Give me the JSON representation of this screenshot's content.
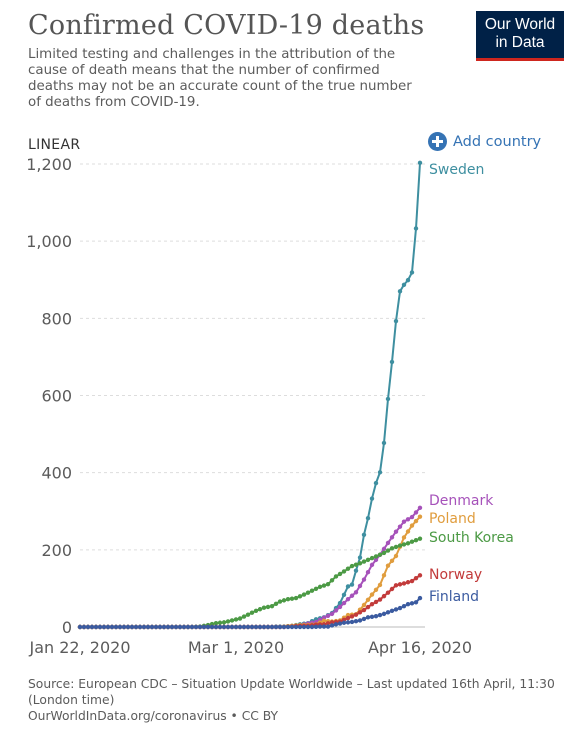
{
  "header": {
    "title": "Confirmed COVID-19 deaths",
    "subtitle": "Limited testing and challenges in the attribution of the cause of death means that the number of confirmed deaths may not be an accurate count of the true number of deaths from COVID-19.",
    "logo_line1": "Our World",
    "logo_line2": "in Data"
  },
  "controls": {
    "scale_label": "LINEAR",
    "add_country_label": "Add country",
    "add_country_icon": "plus-circle-icon"
  },
  "footer": {
    "source_line": "Source: European CDC – Situation Update Worldwide – Last updated 16th April, 11:30 (London time)",
    "url_line": "OurWorldInData.org/coronavirus • CC BY"
  },
  "colors": {
    "logo_bg": "#002147",
    "logo_accent": "#ce261e",
    "link": "#3573b4",
    "grid": "#dddddd"
  },
  "chart_data": {
    "type": "line",
    "title": "",
    "xlabel": "",
    "ylabel": "",
    "x_start": "2020-01-22",
    "x_end": "2020-04-16",
    "x_tick_labels": [
      "Jan 22, 2020",
      "Mar 1, 2020",
      "Apr 16, 2020"
    ],
    "x_tick_dates": [
      "2020-01-22",
      "2020-03-01",
      "2020-04-16"
    ],
    "ylim": [
      0,
      1200
    ],
    "y_ticks": [
      0,
      200,
      400,
      600,
      800,
      1000,
      1200
    ],
    "y_tick_labels": [
      "0",
      "200",
      "400",
      "600",
      "800",
      "1,000",
      "1,200"
    ],
    "grid": "horizontal dashed",
    "legend": "end-of-line labels",
    "series": [
      {
        "name": "Sweden",
        "color": "#3e8fa0",
        "points": [
          [
            "2020-01-22",
            0
          ],
          [
            "2020-03-10",
            0
          ],
          [
            "2020-03-11",
            1
          ],
          [
            "2020-03-13",
            1
          ],
          [
            "2020-03-15",
            3
          ],
          [
            "2020-03-17",
            7
          ],
          [
            "2020-03-19",
            10
          ],
          [
            "2020-03-21",
            20
          ],
          [
            "2020-03-23",
            25
          ],
          [
            "2020-03-25",
            36
          ],
          [
            "2020-03-27",
            62
          ],
          [
            "2020-03-29",
            105
          ],
          [
            "2020-03-30",
            110
          ],
          [
            "2020-03-31",
            146
          ],
          [
            "2020-04-01",
            180
          ],
          [
            "2020-04-02",
            239
          ],
          [
            "2020-04-03",
            282
          ],
          [
            "2020-04-04",
            333
          ],
          [
            "2020-04-05",
            373
          ],
          [
            "2020-04-06",
            401
          ],
          [
            "2020-04-07",
            477
          ],
          [
            "2020-04-08",
            591
          ],
          [
            "2020-04-09",
            687
          ],
          [
            "2020-04-10",
            793
          ],
          [
            "2020-04-11",
            870
          ],
          [
            "2020-04-12",
            887
          ],
          [
            "2020-04-13",
            899
          ],
          [
            "2020-04-14",
            919
          ],
          [
            "2020-04-15",
            1033
          ],
          [
            "2020-04-16",
            1203
          ]
        ]
      },
      {
        "name": "Denmark",
        "color": "#a652ba",
        "points": [
          [
            "2020-01-22",
            0
          ],
          [
            "2020-03-13",
            0
          ],
          [
            "2020-03-14",
            1
          ],
          [
            "2020-03-17",
            4
          ],
          [
            "2020-03-19",
            9
          ],
          [
            "2020-03-21",
            13
          ],
          [
            "2020-03-23",
            24
          ],
          [
            "2020-03-25",
            34
          ],
          [
            "2020-03-27",
            52
          ],
          [
            "2020-03-29",
            72
          ],
          [
            "2020-03-31",
            90
          ],
          [
            "2020-04-02",
            123
          ],
          [
            "2020-04-04",
            161
          ],
          [
            "2020-04-06",
            187
          ],
          [
            "2020-04-08",
            218
          ],
          [
            "2020-04-10",
            247
          ],
          [
            "2020-04-12",
            273
          ],
          [
            "2020-04-14",
            285
          ],
          [
            "2020-04-16",
            309
          ]
        ]
      },
      {
        "name": "Poland",
        "color": "#e09d3e",
        "points": [
          [
            "2020-01-22",
            0
          ],
          [
            "2020-03-12",
            0
          ],
          [
            "2020-03-14",
            2
          ],
          [
            "2020-03-17",
            5
          ],
          [
            "2020-03-19",
            5
          ],
          [
            "2020-03-21",
            7
          ],
          [
            "2020-03-23",
            16
          ],
          [
            "2020-03-25",
            14
          ],
          [
            "2020-03-27",
            17
          ],
          [
            "2020-03-29",
            31
          ],
          [
            "2020-03-31",
            33
          ],
          [
            "2020-04-02",
            57
          ],
          [
            "2020-04-04",
            84
          ],
          [
            "2020-04-06",
            109
          ],
          [
            "2020-04-08",
            159
          ],
          [
            "2020-04-10",
            184
          ],
          [
            "2020-04-12",
            232
          ],
          [
            "2020-04-14",
            263
          ],
          [
            "2020-04-16",
            286
          ]
        ]
      },
      {
        "name": "South Korea",
        "color": "#4c9a45",
        "points": [
          [
            "2020-01-22",
            0
          ],
          [
            "2020-02-19",
            0
          ],
          [
            "2020-02-21",
            1
          ],
          [
            "2020-02-23",
            5
          ],
          [
            "2020-02-25",
            10
          ],
          [
            "2020-02-27",
            12
          ],
          [
            "2020-02-29",
            17
          ],
          [
            "2020-03-02",
            22
          ],
          [
            "2020-03-04",
            32
          ],
          [
            "2020-03-06",
            42
          ],
          [
            "2020-03-08",
            50
          ],
          [
            "2020-03-10",
            54
          ],
          [
            "2020-03-12",
            66
          ],
          [
            "2020-03-14",
            72
          ],
          [
            "2020-03-16",
            75
          ],
          [
            "2020-03-18",
            84
          ],
          [
            "2020-03-20",
            94
          ],
          [
            "2020-03-22",
            104
          ],
          [
            "2020-03-24",
            111
          ],
          [
            "2020-03-26",
            131
          ],
          [
            "2020-03-28",
            144
          ],
          [
            "2020-03-30",
            158
          ],
          [
            "2020-04-01",
            165
          ],
          [
            "2020-04-03",
            174
          ],
          [
            "2020-04-05",
            183
          ],
          [
            "2020-04-07",
            192
          ],
          [
            "2020-04-09",
            204
          ],
          [
            "2020-04-11",
            211
          ],
          [
            "2020-04-13",
            217
          ],
          [
            "2020-04-16",
            229
          ]
        ]
      },
      {
        "name": "Norway",
        "color": "#c23b3b",
        "points": [
          [
            "2020-01-22",
            0
          ],
          [
            "2020-03-13",
            0
          ],
          [
            "2020-03-15",
            1
          ],
          [
            "2020-03-17",
            3
          ],
          [
            "2020-03-19",
            3
          ],
          [
            "2020-03-21",
            6
          ],
          [
            "2020-03-23",
            7
          ],
          [
            "2020-03-25",
            12
          ],
          [
            "2020-03-27",
            14
          ],
          [
            "2020-03-29",
            23
          ],
          [
            "2020-03-31",
            32
          ],
          [
            "2020-04-02",
            44
          ],
          [
            "2020-04-04",
            59
          ],
          [
            "2020-04-06",
            71
          ],
          [
            "2020-04-08",
            89
          ],
          [
            "2020-04-10",
            108
          ],
          [
            "2020-04-12",
            113
          ],
          [
            "2020-04-14",
            119
          ],
          [
            "2020-04-16",
            134
          ]
        ]
      },
      {
        "name": "Finland",
        "color": "#3b5ba0",
        "points": [
          [
            "2020-01-22",
            0
          ],
          [
            "2020-03-20",
            0
          ],
          [
            "2020-03-22",
            1
          ],
          [
            "2020-03-24",
            1
          ],
          [
            "2020-03-26",
            7
          ],
          [
            "2020-03-28",
            11
          ],
          [
            "2020-03-30",
            13
          ],
          [
            "2020-04-01",
            17
          ],
          [
            "2020-04-03",
            25
          ],
          [
            "2020-04-05",
            28
          ],
          [
            "2020-04-07",
            34
          ],
          [
            "2020-04-09",
            42
          ],
          [
            "2020-04-11",
            49
          ],
          [
            "2020-04-13",
            59
          ],
          [
            "2020-04-15",
            64
          ],
          [
            "2020-04-16",
            75
          ]
        ]
      }
    ]
  }
}
